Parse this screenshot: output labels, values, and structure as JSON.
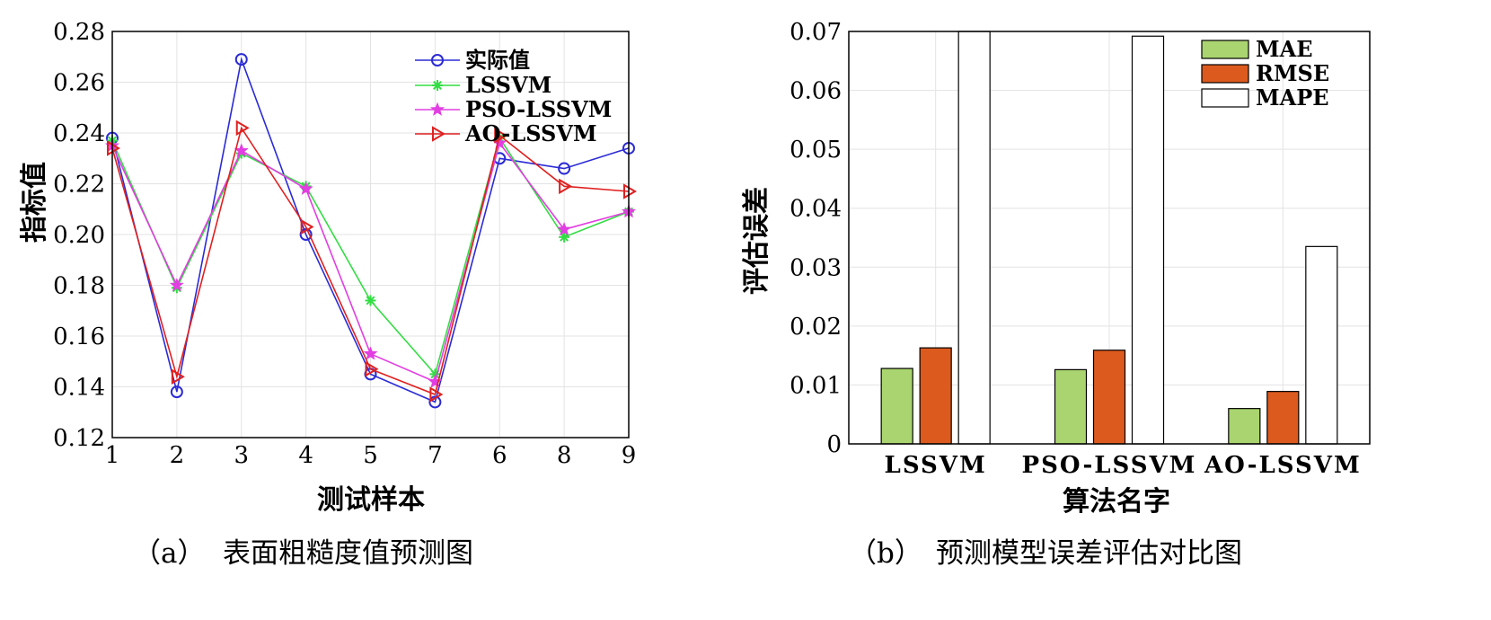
{
  "chart_data": [
    {
      "type": "line",
      "panel": "(a)",
      "caption_prefix": "（a）",
      "caption": "表面粗糙度值预测图",
      "xlabel": "测试样本",
      "ylabel": "指标值",
      "categories": [
        "1",
        "2",
        "3",
        "4",
        "5",
        "7",
        "6",
        "8",
        "9"
      ],
      "ylim": [
        0.12,
        0.28
      ],
      "yticks": [
        "0.12",
        "0.14",
        "0.16",
        "0.18",
        "0.20",
        "0.22",
        "0.24",
        "0.26",
        "0.28"
      ],
      "grid": true,
      "legend_position": "top-right",
      "series": [
        {
          "name": "实际值",
          "color": "#2b2bd6",
          "marker": "circle",
          "values": [
            0.238,
            0.138,
            0.269,
            0.2,
            0.145,
            0.134,
            0.23,
            0.226,
            0.234
          ]
        },
        {
          "name": "LSSVM",
          "color": "#33dd44",
          "marker": "asterisk",
          "values": [
            0.237,
            0.179,
            0.232,
            0.219,
            0.174,
            0.145,
            0.238,
            0.199,
            0.209
          ]
        },
        {
          "name": "PSO-LSSVM",
          "color": "#e23ee2",
          "marker": "star",
          "values": [
            0.235,
            0.18,
            0.233,
            0.218,
            0.153,
            0.142,
            0.236,
            0.202,
            0.209
          ]
        },
        {
          "name": "AO-LSSVM",
          "color": "#e02020",
          "marker": "triangle-right",
          "values": [
            0.234,
            0.144,
            0.242,
            0.203,
            0.147,
            0.137,
            0.239,
            0.219,
            0.217
          ]
        }
      ]
    },
    {
      "type": "bar",
      "panel": "(b)",
      "caption_prefix": "（b）",
      "caption": "预测模型误差评估对比图",
      "xlabel": "算法名字",
      "ylabel": "评估误差",
      "categories": [
        "LSSVM",
        "PSO-LSSVM",
        "AO-LSSVM"
      ],
      "ylim": [
        0,
        0.07
      ],
      "yticks": [
        "0",
        "0.01",
        "0.02",
        "0.03",
        "0.04",
        "0.05",
        "0.06",
        "0.07"
      ],
      "grid": true,
      "legend_position": "top-right",
      "series": [
        {
          "name": "MAE",
          "color": "#a9d46f",
          "values": [
            0.0128,
            0.0126,
            0.006
          ]
        },
        {
          "name": "RMSE",
          "color": "#dd5a1e",
          "values": [
            0.0163,
            0.0159,
            0.0089
          ]
        },
        {
          "name": "MAPE",
          "color": "#ffffff",
          "values": [
            0.07,
            0.0692,
            0.0335
          ]
        }
      ]
    }
  ]
}
